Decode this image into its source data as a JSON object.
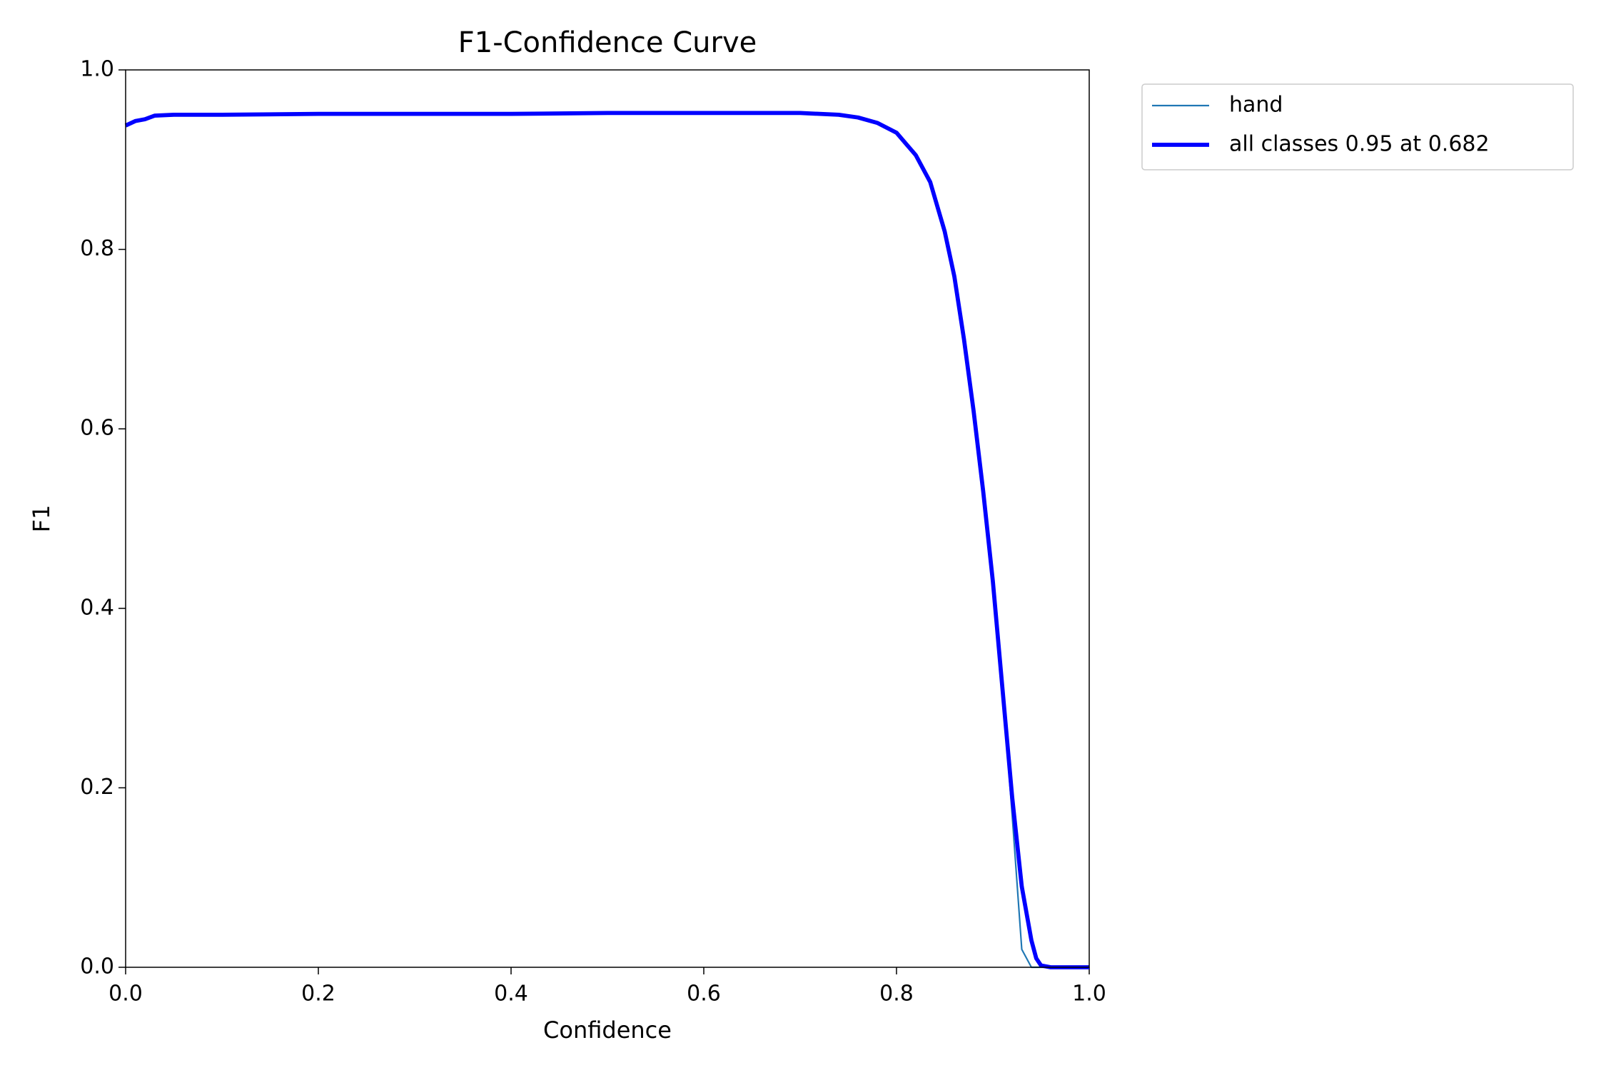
{
  "chart_data": {
    "type": "line",
    "title": "F1-Confidence Curve",
    "x_label": "Confidence",
    "y_label": "F1",
    "x": [
      0,
      0.01,
      0.02,
      0.03,
      0.05,
      0.1,
      0.2,
      0.3,
      0.4,
      0.5,
      0.6,
      0.682,
      0.7,
      0.74,
      0.76,
      0.78,
      0.8,
      0.82,
      0.835,
      0.85,
      0.86,
      0.87,
      0.88,
      0.89,
      0.9,
      0.91,
      0.92,
      0.93,
      0.94,
      0.945,
      0.95,
      0.96,
      1.0
    ],
    "series": [
      {
        "name": "hand",
        "color": "#1f77b4",
        "width": 1.5,
        "values": [
          0.938,
          0.943,
          0.945,
          0.949,
          0.95,
          0.95,
          0.951,
          0.951,
          0.951,
          0.952,
          0.952,
          0.952,
          0.952,
          0.95,
          0.947,
          0.941,
          0.93,
          0.905,
          0.877,
          0.825,
          0.77,
          0.7,
          0.62,
          0.53,
          0.43,
          0.31,
          0.17,
          0.02,
          0,
          0,
          0,
          0,
          0
        ]
      },
      {
        "name": "all classes 0.95 at 0.682",
        "color": "#0000ff",
        "width": 4,
        "values": [
          0.938,
          0.943,
          0.945,
          0.949,
          0.95,
          0.95,
          0.951,
          0.951,
          0.951,
          0.952,
          0.952,
          0.952,
          0.952,
          0.95,
          0.947,
          0.941,
          0.93,
          0.905,
          0.875,
          0.82,
          0.77,
          0.7,
          0.62,
          0.53,
          0.43,
          0.31,
          0.19,
          0.09,
          0.03,
          0.01,
          0.002,
          0,
          0
        ]
      }
    ],
    "xlim": [
      0,
      1
    ],
    "ylim": [
      0,
      1
    ],
    "xticks": [
      {
        "value": 0,
        "label": "0.0"
      },
      0.2,
      0.4,
      0.6,
      0.8,
      {
        "value": 1,
        "label": "1.0"
      }
    ],
    "yticks": [
      {
        "value": 0,
        "label": "0.0"
      },
      0.2,
      0.4,
      0.6,
      0.8,
      {
        "value": 1,
        "label": "1.0"
      }
    ],
    "grid": false,
    "legend": "outside-upper-right"
  }
}
